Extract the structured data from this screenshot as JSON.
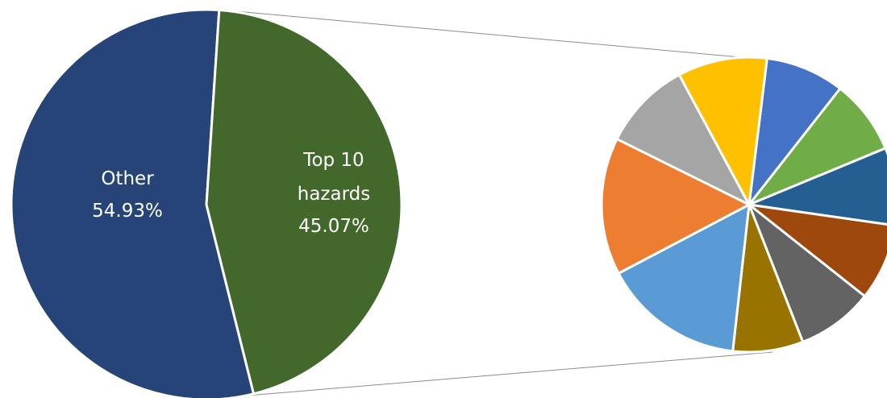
{
  "chart_data": [
    {
      "type": "pie",
      "title": "",
      "slices": [
        {
          "name": "Other",
          "value": 54.93,
          "value_label": "54.93%",
          "color": "#264478"
        },
        {
          "name_lines": [
            "Top 10",
            "hazards"
          ],
          "value": 45.07,
          "value_label": "45.07%",
          "color": "#43682B"
        }
      ],
      "legend": "none"
    },
    {
      "type": "pie",
      "title": "",
      "slices": [
        {
          "value": 7.4,
          "color": "#4472C4"
        },
        {
          "value": 7.0,
          "color": "#70AD47"
        },
        {
          "value": 7.3,
          "color": "#255E91"
        },
        {
          "value": 7.2,
          "color": "#9E480E"
        },
        {
          "value": 7.2,
          "color": "#636363"
        },
        {
          "value": 6.6,
          "color": "#997300"
        },
        {
          "value": 13.3,
          "color": "#5B9BD5"
        },
        {
          "value": 12.9,
          "color": "#ED7D31"
        },
        {
          "value": 8.4,
          "color": "#A5A5A5"
        },
        {
          "value": 8.4,
          "color": "#FFC000"
        }
      ],
      "legend": "none"
    }
  ]
}
